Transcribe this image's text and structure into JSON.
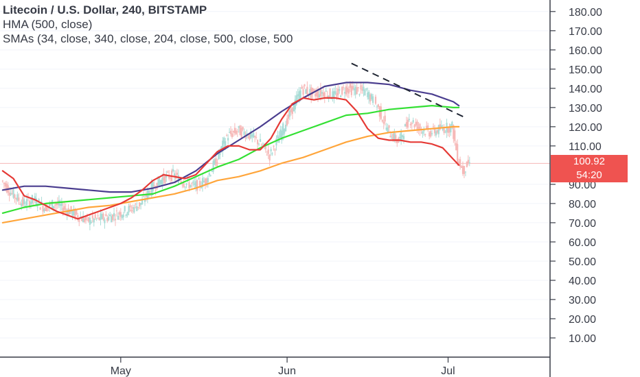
{
  "legend": {
    "title": "Litecoin / U.S. Dollar, 240, BITSTAMP",
    "hma": "HMA (500, close)",
    "smas": "SMAs (34, close, 340, close, 204, close, 500, close, 500"
  },
  "price_tags": {
    "last_price": "100.92",
    "countdown": "54:20"
  },
  "colors": {
    "up": "#26a69a",
    "down": "#ef5350",
    "sma_red": "#e53935",
    "sma_navy": "#4a3d8f",
    "sma_green": "#33e033",
    "sma_orange": "#ffa53a",
    "price_tag": "#ef5350",
    "trendline": "#1f2533",
    "axis": "#363a45"
  },
  "chart_data": {
    "type": "line",
    "ylim": [
      0,
      186
    ],
    "y_ticks": [
      "10.00",
      "20.00",
      "30.00",
      "40.00",
      "50.00",
      "60.00",
      "70.00",
      "80.00",
      "90.00",
      "110.00",
      "120.00",
      "130.00",
      "140.00",
      "150.00",
      "160.00",
      "170.00",
      "180.00"
    ],
    "x_labels": [
      {
        "label": "May",
        "day": 30
      },
      {
        "label": "Jun",
        "day": 61
      },
      {
        "label": "Jul",
        "day": 91
      }
    ],
    "x_domain": [
      7.5,
      110
    ],
    "last_price": 100.92,
    "price_line": [
      [
        8,
        92
      ],
      [
        10,
        85
      ],
      [
        12,
        80
      ],
      [
        14,
        82
      ],
      [
        16,
        78
      ],
      [
        18,
        80
      ],
      [
        20,
        77
      ],
      [
        22,
        74
      ],
      [
        24,
        71
      ],
      [
        26,
        72
      ],
      [
        28,
        73
      ],
      [
        30,
        75
      ],
      [
        32,
        77
      ],
      [
        34,
        80
      ],
      [
        36,
        88
      ],
      [
        38,
        93
      ],
      [
        40,
        95
      ],
      [
        42,
        91
      ],
      [
        44,
        89
      ],
      [
        46,
        92
      ],
      [
        48,
        102
      ],
      [
        50,
        115
      ],
      [
        52,
        118
      ],
      [
        54,
        116
      ],
      [
        56,
        112
      ],
      [
        58,
        105
      ],
      [
        60,
        116
      ],
      [
        62,
        128
      ],
      [
        64,
        140
      ],
      [
        66,
        137
      ],
      [
        68,
        138
      ],
      [
        70,
        136
      ],
      [
        72,
        140
      ],
      [
        74,
        139
      ],
      [
        76,
        138
      ],
      [
        78,
        131
      ],
      [
        80,
        118
      ],
      [
        82,
        112
      ],
      [
        84,
        124
      ],
      [
        86,
        119
      ],
      [
        88,
        117
      ],
      [
        90,
        119
      ],
      [
        92,
        120
      ],
      [
        93,
        104
      ],
      [
        94,
        97
      ],
      [
        95,
        101
      ]
    ],
    "series": [
      {
        "key": "red",
        "values": [
          [
            8,
            97
          ],
          [
            10,
            93
          ],
          [
            12,
            84
          ],
          [
            14,
            82
          ],
          [
            16,
            79
          ],
          [
            18,
            76
          ],
          [
            20,
            74
          ],
          [
            22,
            72
          ],
          [
            24,
            74
          ],
          [
            26,
            76
          ],
          [
            28,
            78
          ],
          [
            30,
            80
          ],
          [
            32,
            83
          ],
          [
            34,
            87
          ],
          [
            36,
            92
          ],
          [
            38,
            95
          ],
          [
            40,
            94
          ],
          [
            42,
            93
          ],
          [
            44,
            95
          ],
          [
            46,
            101
          ],
          [
            48,
            107
          ],
          [
            50,
            110
          ],
          [
            52,
            110
          ],
          [
            54,
            108
          ],
          [
            56,
            108
          ],
          [
            58,
            114
          ],
          [
            60,
            124
          ],
          [
            62,
            132
          ],
          [
            64,
            135
          ],
          [
            66,
            134
          ],
          [
            68,
            135
          ],
          [
            70,
            135
          ],
          [
            72,
            134
          ],
          [
            74,
            128
          ],
          [
            76,
            119
          ],
          [
            78,
            114
          ],
          [
            80,
            113
          ],
          [
            82,
            113
          ],
          [
            84,
            112
          ],
          [
            86,
            112
          ],
          [
            88,
            111
          ],
          [
            90,
            109
          ],
          [
            92,
            103
          ],
          [
            93,
            100
          ]
        ]
      },
      {
        "key": "navy",
        "values": [
          [
            8,
            87
          ],
          [
            12,
            89
          ],
          [
            16,
            89
          ],
          [
            20,
            88
          ],
          [
            24,
            87
          ],
          [
            28,
            86
          ],
          [
            32,
            86
          ],
          [
            36,
            88
          ],
          [
            40,
            91
          ],
          [
            44,
            97
          ],
          [
            48,
            106
          ],
          [
            52,
            113
          ],
          [
            56,
            120
          ],
          [
            60,
            128
          ],
          [
            64,
            135
          ],
          [
            68,
            141
          ],
          [
            72,
            143
          ],
          [
            76,
            143
          ],
          [
            80,
            142
          ],
          [
            84,
            139
          ],
          [
            88,
            137
          ],
          [
            92,
            133
          ],
          [
            93,
            131
          ]
        ]
      },
      {
        "key": "green",
        "values": [
          [
            8,
            75
          ],
          [
            12,
            78
          ],
          [
            16,
            80
          ],
          [
            20,
            81
          ],
          [
            24,
            82
          ],
          [
            28,
            83
          ],
          [
            32,
            84
          ],
          [
            36,
            85
          ],
          [
            40,
            89
          ],
          [
            44,
            94
          ],
          [
            48,
            99
          ],
          [
            52,
            103
          ],
          [
            56,
            109
          ],
          [
            60,
            114
          ],
          [
            64,
            118
          ],
          [
            68,
            122
          ],
          [
            72,
            126
          ],
          [
            76,
            127
          ],
          [
            80,
            129
          ],
          [
            84,
            130
          ],
          [
            88,
            131
          ],
          [
            92,
            130
          ],
          [
            93,
            130
          ]
        ]
      },
      {
        "key": "orange",
        "values": [
          [
            8,
            70
          ],
          [
            12,
            72
          ],
          [
            16,
            74
          ],
          [
            20,
            76
          ],
          [
            24,
            78
          ],
          [
            28,
            79
          ],
          [
            32,
            81
          ],
          [
            36,
            83
          ],
          [
            40,
            85
          ],
          [
            44,
            88
          ],
          [
            48,
            92
          ],
          [
            52,
            94
          ],
          [
            56,
            97
          ],
          [
            60,
            101
          ],
          [
            64,
            104
          ],
          [
            68,
            108
          ],
          [
            72,
            112
          ],
          [
            76,
            115
          ],
          [
            80,
            117
          ],
          [
            84,
            118
          ],
          [
            88,
            119
          ],
          [
            92,
            120
          ],
          [
            93,
            120
          ]
        ]
      }
    ],
    "trendline": [
      [
        73,
        153
      ],
      [
        94,
        125
      ]
    ]
  }
}
